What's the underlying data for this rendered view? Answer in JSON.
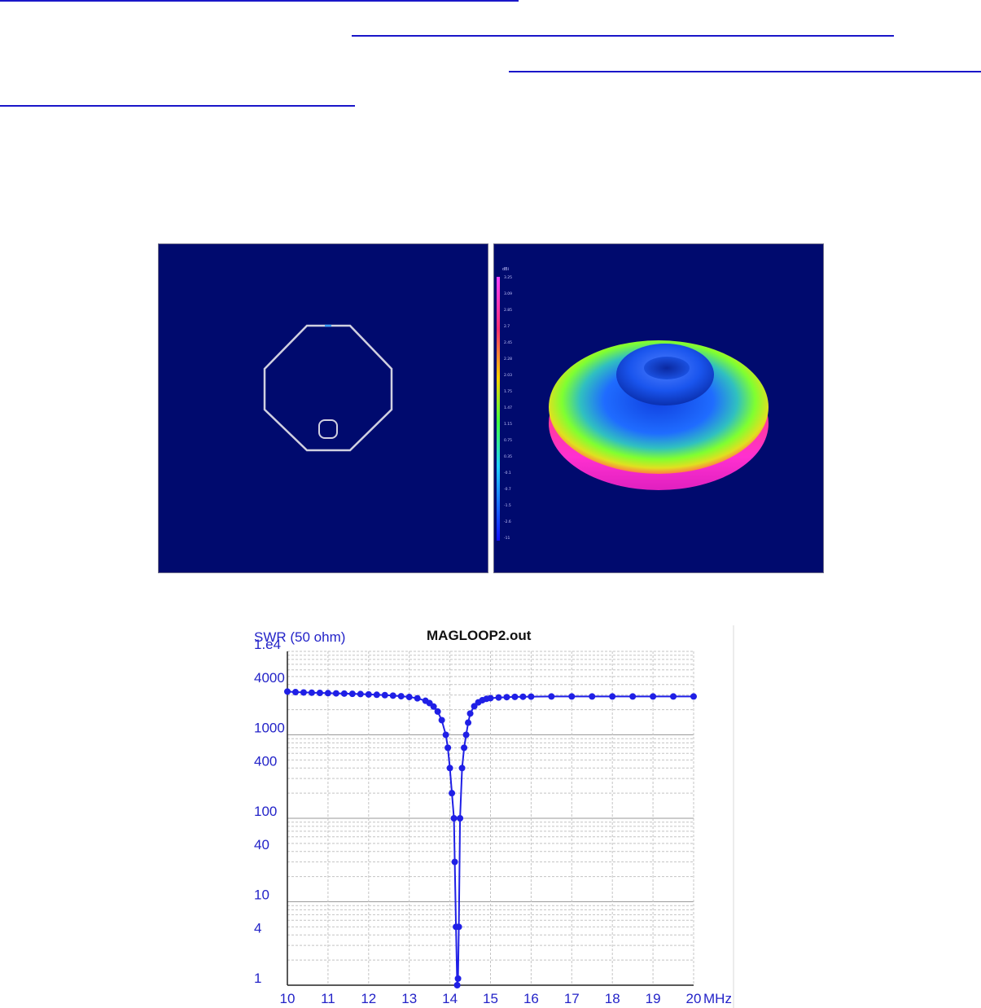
{
  "links": [
    {
      "name": "link-line-1"
    },
    {
      "name": "link-line-2"
    },
    {
      "name": "link-line-3"
    },
    {
      "name": "link-line-4"
    }
  ],
  "pattern": {
    "colorbar_unit": "dBi",
    "colorbar_ticks": [
      "3.25",
      "3.09",
      "2.85",
      "2.7",
      "2.45",
      "2.28",
      "2.03",
      "1.75",
      "1.47",
      "1.15",
      "0.75",
      "0.35",
      "-0.1",
      "-0.7",
      "-1.5",
      "-2.6",
      "-11"
    ]
  },
  "chart_data": {
    "type": "line",
    "title": "MAGLOOP2.out",
    "ylabel": "SWR (50 ohm)",
    "xlabel": "MHz",
    "xlim": [
      10,
      20
    ],
    "ylim": [
      1,
      10000
    ],
    "y_scale": "log",
    "x_ticks": [
      "10",
      "11",
      "12",
      "13",
      "14",
      "15",
      "16",
      "17",
      "18",
      "19",
      "20"
    ],
    "y_ticks": [
      {
        "value": 10000,
        "label": "1.e4"
      },
      {
        "value": 4000,
        "label": "4000"
      },
      {
        "value": 1000,
        "label": "1000"
      },
      {
        "value": 400,
        "label": "400"
      },
      {
        "value": 100,
        "label": "100"
      },
      {
        "value": 40,
        "label": "40"
      },
      {
        "value": 10,
        "label": "10"
      },
      {
        "value": 4,
        "label": "4"
      },
      {
        "value": 1,
        "label": "1"
      }
    ],
    "grid": true,
    "color": "#1f1fe6",
    "series": [
      {
        "x": [
          10.0,
          10.2,
          10.4,
          10.6,
          10.8,
          11.0,
          11.2,
          11.4,
          11.6,
          11.8,
          12.0,
          12.2,
          12.4,
          12.6,
          12.8,
          13.0,
          13.2,
          13.4,
          13.5,
          13.6,
          13.7,
          13.8,
          13.9,
          13.95,
          14.0,
          14.05,
          14.1,
          14.12,
          14.15,
          14.18,
          14.2,
          14.22,
          14.25,
          14.3,
          14.35,
          14.4,
          14.45,
          14.5,
          14.6,
          14.7,
          14.8,
          14.9,
          15.0,
          15.2,
          15.4,
          15.6,
          15.8,
          16.0,
          16.5,
          17.0,
          17.5,
          18.0,
          18.5,
          19.0,
          19.5,
          20.0
        ],
        "y": [
          3300,
          3250,
          3220,
          3200,
          3180,
          3160,
          3140,
          3120,
          3100,
          3080,
          3050,
          3020,
          2990,
          2950,
          2900,
          2840,
          2740,
          2560,
          2400,
          2180,
          1900,
          1500,
          1000,
          700,
          400,
          200,
          100,
          30,
          5,
          1,
          1.2,
          5,
          100,
          400,
          700,
          1000,
          1400,
          1800,
          2200,
          2450,
          2600,
          2700,
          2750,
          2800,
          2830,
          2850,
          2860,
          2870,
          2880,
          2880,
          2880,
          2880,
          2880,
          2880,
          2880,
          2880
        ]
      }
    ]
  }
}
